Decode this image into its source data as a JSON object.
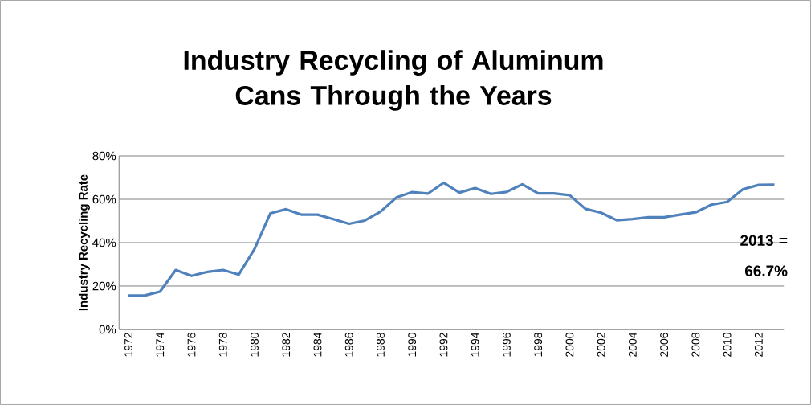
{
  "chart_data": {
    "type": "line",
    "title": "Industry Recycling of Aluminum Cans Through the Years",
    "ylabel": "Industry Recycling  Rate",
    "categories": [
      "1972",
      null,
      "1974",
      null,
      "1976",
      null,
      "1978",
      null,
      "1980",
      null,
      "1982",
      null,
      "1984",
      null,
      "1986",
      null,
      "1988",
      null,
      "1990",
      null,
      "1992",
      null,
      "1994",
      null,
      "1996",
      null,
      "1998",
      null,
      "2000",
      null,
      "2002",
      null,
      "2004",
      null,
      "2006",
      null,
      "2008",
      null,
      "2010",
      null,
      "2012",
      null
    ],
    "series": [
      {
        "color": "#4f81bd",
        "values": [
          15.6,
          15.6,
          17.4,
          27.4,
          24.7,
          26.5,
          27.4,
          25.3,
          37.1,
          53.5,
          55.4,
          52.9,
          52.9,
          50.8,
          48.7,
          50.2,
          54.3,
          60.8,
          63.3,
          62.6,
          67.6,
          63.1,
          65.2,
          62.5,
          63.4,
          66.9,
          62.7,
          62.7,
          61.9,
          55.6,
          53.8,
          50.3,
          50.9,
          51.7,
          51.7,
          52.9,
          54.0,
          57.5,
          58.8,
          64.6,
          66.6,
          66.7
        ]
      }
    ],
    "ylim": [
      0,
      80
    ],
    "yticks": [
      {
        "value": 0,
        "label": "0%"
      },
      {
        "value": 20,
        "label": "20%"
      },
      {
        "value": 40,
        "label": "40%"
      },
      {
        "value": 60,
        "label": "60%"
      },
      {
        "value": 80,
        "label": "80%"
      }
    ],
    "grid": "y",
    "marker": "none",
    "line_style": "solid",
    "annotations": [
      "2013 = 66.7%"
    ]
  }
}
